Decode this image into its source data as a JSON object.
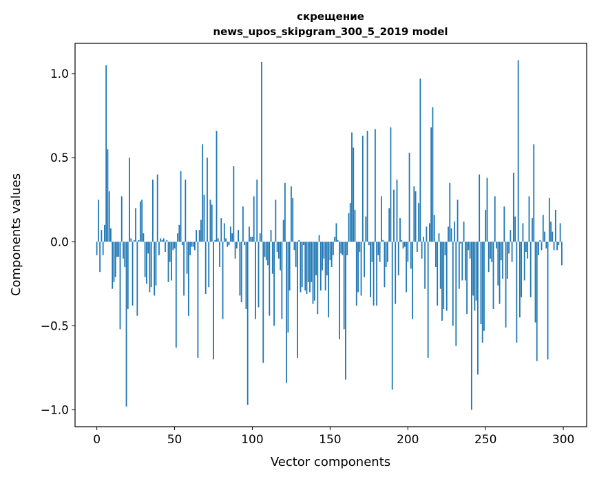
{
  "chart_data": {
    "type": "bar",
    "title_lines": [
      "скрещение",
      "news_upos_skipgram_300_5_2019 model"
    ],
    "xlabel": "Vector components",
    "ylabel": "Components values",
    "xlim": [
      -14,
      315
    ],
    "ylim": [
      -1.1,
      1.18
    ],
    "xticks": [
      0,
      50,
      100,
      150,
      200,
      250,
      300
    ],
    "xtick_labels": [
      "0",
      "50",
      "100",
      "150",
      "200",
      "250",
      "300"
    ],
    "yticks": [
      -1.0,
      -0.5,
      0.0,
      0.5,
      1.0
    ],
    "ytick_labels": [
      "−1.0",
      "−0.5",
      "0.0",
      "0.5",
      "1.0"
    ],
    "grid": false,
    "bar_color": "#1f77b4",
    "values": [
      -0.08,
      0.25,
      -0.18,
      0.07,
      -0.08,
      0.1,
      1.05,
      0.55,
      0.3,
      0.08,
      -0.28,
      -0.24,
      -0.21,
      -0.09,
      -0.09,
      -0.52,
      0.27,
      -0.1,
      -0.15,
      -0.98,
      -0.4,
      0.5,
      0.02,
      -0.38,
      0.01,
      0.2,
      -0.44,
      0.01,
      0.24,
      0.25,
      0.05,
      -0.21,
      -0.25,
      -0.07,
      -0.3,
      -0.27,
      0.37,
      -0.32,
      -0.26,
      0.4,
      -0.08,
      0.02,
      0.01,
      0.02,
      -0.06,
      0.01,
      -0.24,
      -0.12,
      -0.23,
      -0.05,
      -0.04,
      -0.63,
      0.05,
      0.1,
      0.42,
      -0.02,
      -0.32,
      0.37,
      -0.19,
      -0.44,
      -0.08,
      -0.03,
      -0.03,
      -0.05,
      0.07,
      -0.69,
      0.07,
      0.13,
      0.58,
      0.28,
      -0.31,
      0.5,
      -0.27,
      0.25,
      0.22,
      -0.7,
      0.01,
      0.66,
      0.02,
      -0.15,
      0.14,
      -0.46,
      0.11,
      0.02,
      -0.03,
      -0.02,
      0.09,
      0.05,
      0.45,
      -0.1,
      -0.04,
      0.07,
      -0.32,
      -0.36,
      0.21,
      -0.02,
      -0.4,
      -0.97,
      0.09,
      0.03,
      0.03,
      0.27,
      -0.46,
      0.37,
      -0.39,
      0.05,
      1.07,
      -0.72,
      -0.09,
      -0.11,
      -0.14,
      -0.44,
      0.07,
      -0.19,
      -0.5,
      0.25,
      -0.06,
      -0.1,
      -0.17,
      -0.46,
      0.13,
      0.35,
      -0.84,
      -0.54,
      -0.29,
      0.33,
      0.26,
      -0.05,
      -0.15,
      -0.69,
      0.01,
      -0.3,
      -0.27,
      -0.02,
      -0.29,
      -0.31,
      -0.24,
      -0.3,
      -0.24,
      -0.37,
      -0.35,
      -0.2,
      -0.43,
      0.04,
      -0.29,
      -0.17,
      -0.1,
      -0.29,
      -0.2,
      -0.45,
      -0.11,
      -0.15,
      -0.08,
      0.03,
      0.11,
      0.01,
      -0.58,
      -0.07,
      -0.08,
      -0.52,
      -0.82,
      -0.08,
      0.17,
      0.23,
      0.65,
      0.56,
      0.19,
      -0.38,
      -0.3,
      -0.06,
      -0.32,
      0.63,
      -0.21,
      0.15,
      0.66,
      -0.02,
      -0.33,
      -0.12,
      -0.38,
      0.67,
      -0.38,
      -0.08,
      -0.12,
      0.27,
      0.01,
      -0.27,
      -0.15,
      -0.12,
      0.2,
      0.68,
      -0.88,
      0.31,
      -0.37,
      0.37,
      -0.2,
      0.14,
      0.01,
      -0.04,
      -0.03,
      -0.3,
      -0.12,
      0.53,
      -0.16,
      -0.46,
      0.33,
      0.3,
      -0.06,
      0.23,
      0.97,
      -0.1,
      0.03,
      -0.28,
      0.09,
      -0.69,
      0.11,
      0.68,
      0.8,
      0.16,
      -0.15,
      -0.38,
      0.05,
      -0.28,
      -0.47,
      -0.4,
      -0.08,
      -0.41,
      0.09,
      0.35,
      0.08,
      -0.5,
      0.12,
      -0.62,
      0.25,
      -0.28,
      -0.01,
      -0.23,
      0.12,
      -0.23,
      -0.43,
      -0.05,
      -0.1,
      -1.0,
      -0.32,
      -0.41,
      -0.35,
      -0.79,
      0.4,
      -0.49,
      -0.6,
      -0.53,
      0.19,
      0.38,
      -0.18,
      -0.1,
      -0.12,
      -0.4,
      0.27,
      -0.04,
      -0.26,
      -0.37,
      -0.11,
      -0.22,
      0.21,
      -0.51,
      -0.22,
      -0.07,
      0.07,
      -0.12,
      0.41,
      0.15,
      -0.6,
      1.08,
      -0.45,
      -0.33,
      0.11,
      -0.23,
      -0.06,
      -0.1,
      0.27,
      -0.33,
      0.14,
      0.58,
      -0.48,
      -0.71,
      -0.08,
      0.01,
      -0.05,
      0.16,
      0.06,
      -0.04,
      -0.7,
      0.26,
      0.12,
      0.06,
      -0.05,
      0.19,
      -0.05,
      -0.02,
      0.11,
      -0.14
    ]
  }
}
